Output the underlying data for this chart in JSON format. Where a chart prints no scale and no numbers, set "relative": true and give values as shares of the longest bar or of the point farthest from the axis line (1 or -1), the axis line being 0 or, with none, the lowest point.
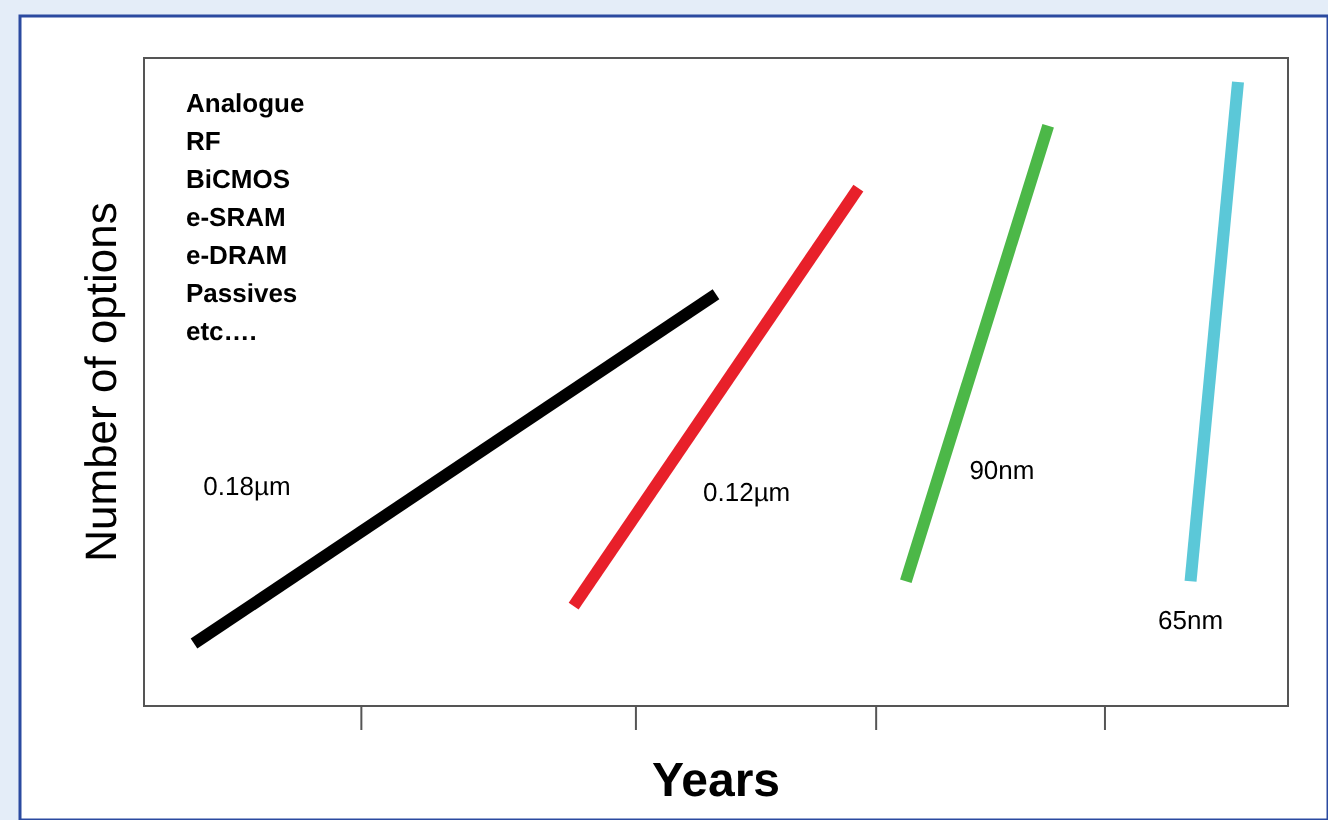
{
  "chart_data": {
    "type": "line",
    "relative": true,
    "xlabel": "Years",
    "ylabel": "Number of options",
    "categories": [
      null,
      null,
      null,
      null,
      null,
      null,
      null,
      null,
      null,
      null,
      null,
      null,
      null,
      null,
      null,
      null,
      null,
      null,
      null,
      null,
      null,
      null,
      null
    ],
    "grid": false,
    "marker": "none",
    "line_style": "solid",
    "annotations": [
      "Analogue\nRF\nBiCMOS\ne-SRAM\ne-DRAM\nPassives\netc…."
    ],
    "series": [
      {
        "name": "0.18µm",
        "color": "#000000",
        "values": [
          0.1,
          null,
          null,
          null,
          null,
          null,
          null,
          null,
          null,
          null,
          null,
          0.66,
          null,
          null,
          null,
          null,
          null,
          null,
          null,
          null,
          null,
          null,
          null
        ]
      },
      {
        "name": "0.12µm",
        "color": "#e8202a",
        "values": [
          null,
          null,
          null,
          null,
          null,
          null,
          null,
          null,
          0.16,
          null,
          null,
          null,
          null,
          null,
          0.83,
          null,
          null,
          null,
          null,
          null,
          null,
          null,
          null
        ]
      },
      {
        "name": "90nm",
        "color": "#4cb848",
        "values": [
          null,
          null,
          null,
          null,
          null,
          null,
          null,
          null,
          null,
          null,
          null,
          null,
          null,
          null,
          null,
          0.2,
          null,
          null,
          0.93,
          null,
          null,
          null,
          null
        ]
      },
      {
        "name": "65nm",
        "color": "#5bc8d8",
        "values": [
          null,
          null,
          null,
          null,
          null,
          null,
          null,
          null,
          null,
          null,
          null,
          null,
          null,
          null,
          null,
          null,
          null,
          null,
          null,
          null,
          null,
          0.2,
          1
        ]
      }
    ]
  }
}
